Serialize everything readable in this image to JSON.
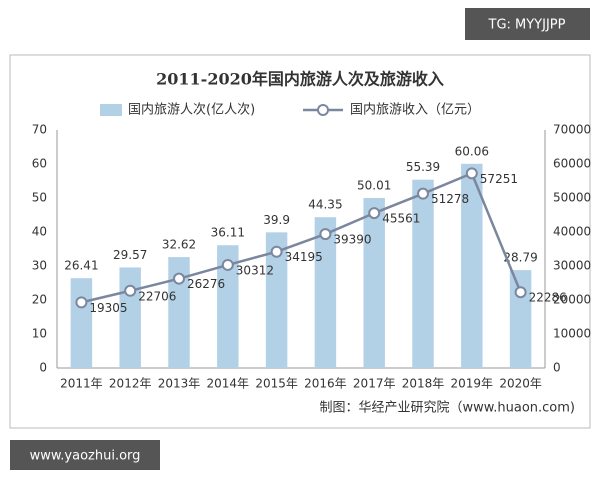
{
  "chart_data": {
    "type": "bar",
    "title": "2011-2020年国内旅游人次及旅游收入",
    "categories": [
      "2011年",
      "2012年",
      "2013年",
      "2014年",
      "2015年",
      "2016年",
      "2017年",
      "2018年",
      "2019年",
      "2020年"
    ],
    "series": [
      {
        "name": "国内旅游人次(亿人次)",
        "type": "bar",
        "color": "#b3d1e6",
        "values": [
          26.41,
          29.57,
          32.62,
          36.11,
          39.9,
          44.35,
          50.01,
          55.39,
          60.06,
          28.79
        ]
      },
      {
        "name": "国内旅游收入（亿元）",
        "type": "line",
        "axis": "y2",
        "color": "#7b879e",
        "values": [
          19305,
          22706,
          26276,
          30312,
          34195,
          39390,
          45561,
          51278,
          57251,
          22286
        ]
      }
    ],
    "ylim": [
      0,
      70
    ],
    "yticks": [
      0,
      10,
      20,
      30,
      40,
      50,
      60,
      70
    ],
    "y2lim": [
      0,
      70000
    ],
    "y2ticks": [
      0,
      10000,
      20000,
      30000,
      40000,
      50000,
      60000,
      70000
    ],
    "grid": false,
    "source": "制图：华经产业研究院（www.huaon.com)"
  },
  "watermarks": [
    "TG: MYYJJPP",
    "www.yaozhui.org"
  ]
}
